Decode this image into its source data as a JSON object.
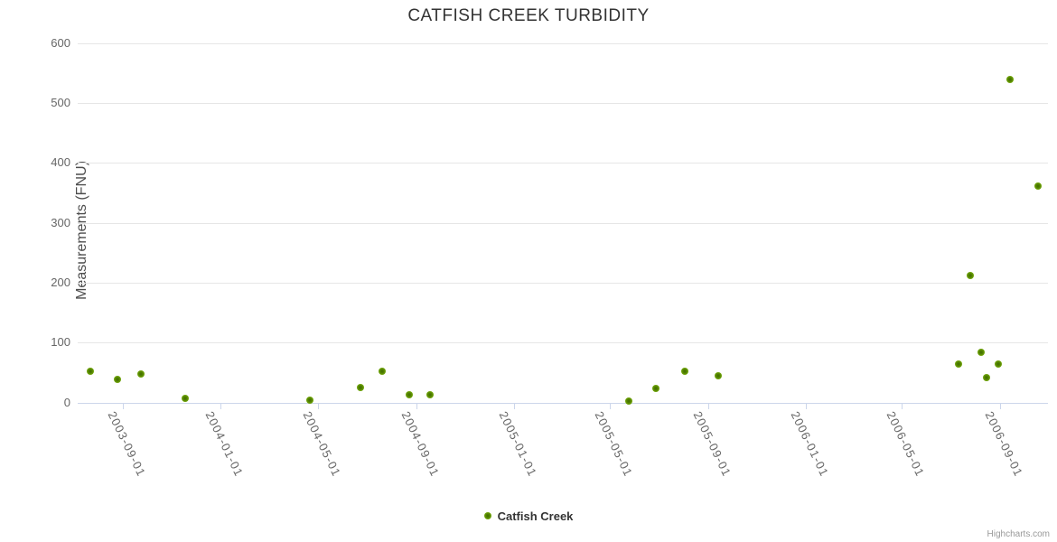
{
  "credits": "Highcharts.com",
  "colors": {
    "title": "#333333",
    "axis_labels": "#666666",
    "gridline": "#e6e6e6",
    "axis_line": "#ccd6eb",
    "series_green": "#5f9400",
    "point_center": "#3f6c00",
    "point_edge": "#8fc437",
    "legend_text": "#333333",
    "credits_text": "#999999"
  },
  "chart_data": {
    "type": "scatter",
    "title": "CATFISH CREEK TURBIDITY",
    "xlabel": "",
    "ylabel": "Measurements (FNU)",
    "ylim": [
      0,
      600
    ],
    "y_ticks": [
      0,
      100,
      200,
      300,
      400,
      500,
      600
    ],
    "x_tick_labels": [
      "2003-09-01",
      "2004-01-01",
      "2004-05-01",
      "2004-09-01",
      "2005-01-01",
      "2005-05-01",
      "2005-09-01",
      "2006-01-01",
      "2006-05-01",
      "2006-09-01"
    ],
    "x_range": [
      "2003-07-06",
      "2006-10-31"
    ],
    "grid": true,
    "legend_position": "bottom-center",
    "series": [
      {
        "name": "Catfish Creek",
        "color": "#5f9400",
        "points": [
          {
            "date": "2003-07-22",
            "value": 53
          },
          {
            "date": "2003-08-25",
            "value": 38
          },
          {
            "date": "2003-09-23",
            "value": 48
          },
          {
            "date": "2003-11-17",
            "value": 7
          },
          {
            "date": "2004-04-21",
            "value": 4
          },
          {
            "date": "2004-06-23",
            "value": 25
          },
          {
            "date": "2004-07-21",
            "value": 53
          },
          {
            "date": "2004-08-23",
            "value": 13
          },
          {
            "date": "2004-09-19",
            "value": 13
          },
          {
            "date": "2005-05-25",
            "value": 3
          },
          {
            "date": "2005-06-28",
            "value": 23
          },
          {
            "date": "2005-08-03",
            "value": 53
          },
          {
            "date": "2005-09-14",
            "value": 45
          },
          {
            "date": "2006-07-11",
            "value": 65
          },
          {
            "date": "2006-07-26",
            "value": 212
          },
          {
            "date": "2006-08-08",
            "value": 84
          },
          {
            "date": "2006-08-15",
            "value": 42
          },
          {
            "date": "2006-08-30",
            "value": 65
          },
          {
            "date": "2006-09-14",
            "value": 540
          },
          {
            "date": "2006-10-19",
            "value": 361
          }
        ]
      }
    ]
  }
}
